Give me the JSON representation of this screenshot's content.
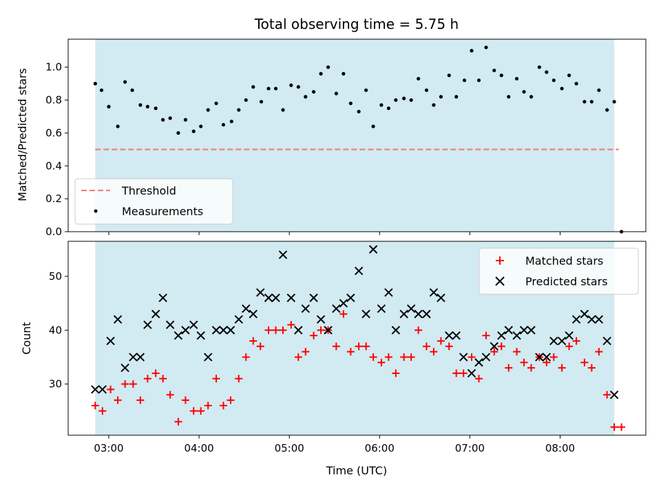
{
  "chart_data": {
    "type": "scatter",
    "title": "Total observing time = 5.75 h",
    "xlabel": "Time (UTC)",
    "x_unit": "hours UTC",
    "xlim": [
      2.55,
      8.95
    ],
    "xticks": [
      3,
      4,
      5,
      6,
      7,
      8
    ],
    "xtick_labels": [
      "03:00",
      "04:00",
      "05:00",
      "06:00",
      "07:00",
      "08:00"
    ],
    "observing_window": [
      2.85,
      8.6
    ],
    "observing_window_color": "#add8e6",
    "panels": [
      {
        "name": "ratio",
        "ylabel": "Matched/Predicted stars",
        "ylim": [
          0,
          1.17
        ],
        "yticks": [
          0.0,
          0.2,
          0.4,
          0.6,
          0.8,
          1.0
        ],
        "ytick_labels": [
          "0.0",
          "0.2",
          "0.4",
          "0.6",
          "0.8",
          "1.0"
        ],
        "legend_position": "lower-left",
        "threshold": {
          "name": "Threshold",
          "value": 0.5,
          "x_range": [
            2.85,
            8.65
          ],
          "color": "#f08080"
        },
        "series": [
          {
            "name": "Measurements",
            "marker": "dot",
            "color": "#000000",
            "points": [
              [
                2.85,
                0.9
              ],
              [
                2.92,
                0.86
              ],
              [
                3.0,
                0.76
              ],
              [
                3.1,
                0.64
              ],
              [
                3.18,
                0.91
              ],
              [
                3.26,
                0.86
              ],
              [
                3.35,
                0.77
              ],
              [
                3.43,
                0.76
              ],
              [
                3.52,
                0.75
              ],
              [
                3.6,
                0.68
              ],
              [
                3.68,
                0.69
              ],
              [
                3.77,
                0.6
              ],
              [
                3.85,
                0.68
              ],
              [
                3.94,
                0.61
              ],
              [
                4.02,
                0.64
              ],
              [
                4.1,
                0.74
              ],
              [
                4.19,
                0.78
              ],
              [
                4.27,
                0.65
              ],
              [
                4.36,
                0.67
              ],
              [
                4.44,
                0.74
              ],
              [
                4.52,
                0.8
              ],
              [
                4.6,
                0.88
              ],
              [
                4.69,
                0.79
              ],
              [
                4.77,
                0.87
              ],
              [
                4.85,
                0.87
              ],
              [
                4.93,
                0.74
              ],
              [
                5.02,
                0.89
              ],
              [
                5.1,
                0.88
              ],
              [
                5.18,
                0.82
              ],
              [
                5.27,
                0.85
              ],
              [
                5.35,
                0.96
              ],
              [
                5.43,
                1.0
              ],
              [
                5.52,
                0.84
              ],
              [
                5.6,
                0.96
              ],
              [
                5.68,
                0.78
              ],
              [
                5.77,
                0.73
              ],
              [
                5.85,
                0.86
              ],
              [
                5.93,
                0.64
              ],
              [
                6.02,
                0.77
              ],
              [
                6.1,
                0.75
              ],
              [
                6.18,
                0.8
              ],
              [
                6.27,
                0.81
              ],
              [
                6.35,
                0.8
              ],
              [
                6.43,
                0.93
              ],
              [
                6.52,
                0.86
              ],
              [
                6.6,
                0.77
              ],
              [
                6.68,
                0.82
              ],
              [
                6.77,
                0.95
              ],
              [
                6.85,
                0.82
              ],
              [
                6.94,
                0.92
              ],
              [
                7.02,
                1.1
              ],
              [
                7.1,
                0.92
              ],
              [
                7.18,
                1.12
              ],
              [
                7.27,
                0.98
              ],
              [
                7.35,
                0.95
              ],
              [
                7.43,
                0.82
              ],
              [
                7.52,
                0.93
              ],
              [
                7.6,
                0.85
              ],
              [
                7.68,
                0.82
              ],
              [
                7.77,
                1.0
              ],
              [
                7.85,
                0.97
              ],
              [
                7.93,
                0.92
              ],
              [
                8.02,
                0.87
              ],
              [
                8.1,
                0.95
              ],
              [
                8.18,
                0.9
              ],
              [
                8.27,
                0.79
              ],
              [
                8.35,
                0.79
              ],
              [
                8.43,
                0.86
              ],
              [
                8.52,
                0.74
              ],
              [
                8.6,
                0.79
              ],
              [
                8.68,
                0.0
              ]
            ]
          }
        ]
      },
      {
        "name": "count",
        "ylabel": "Count",
        "ylim": [
          20.5,
          56.5
        ],
        "yticks": [
          30,
          40,
          50
        ],
        "ytick_labels": [
          "30",
          "40",
          "50"
        ],
        "legend_position": "upper-right",
        "series": [
          {
            "name": "Matched stars",
            "marker": "plus",
            "color": "#ff0000",
            "points": [
              [
                2.85,
                26
              ],
              [
                2.93,
                25
              ],
              [
                3.02,
                29
              ],
              [
                3.1,
                27
              ],
              [
                3.18,
                30
              ],
              [
                3.27,
                30
              ],
              [
                3.35,
                27
              ],
              [
                3.43,
                31
              ],
              [
                3.52,
                32
              ],
              [
                3.6,
                31
              ],
              [
                3.68,
                28
              ],
              [
                3.77,
                23
              ],
              [
                3.85,
                27
              ],
              [
                3.94,
                25
              ],
              [
                4.02,
                25
              ],
              [
                4.1,
                26
              ],
              [
                4.19,
                31
              ],
              [
                4.27,
                26
              ],
              [
                4.35,
                27
              ],
              [
                4.44,
                31
              ],
              [
                4.52,
                35
              ],
              [
                4.6,
                38
              ],
              [
                4.68,
                37
              ],
              [
                4.77,
                40
              ],
              [
                4.85,
                40
              ],
              [
                4.93,
                40
              ],
              [
                5.02,
                41
              ],
              [
                5.1,
                35
              ],
              [
                5.18,
                36
              ],
              [
                5.27,
                39
              ],
              [
                5.35,
                40
              ],
              [
                5.43,
                40
              ],
              [
                5.52,
                37
              ],
              [
                5.6,
                43
              ],
              [
                5.68,
                36
              ],
              [
                5.77,
                37
              ],
              [
                5.85,
                37
              ],
              [
                5.93,
                35
              ],
              [
                6.02,
                34
              ],
              [
                6.1,
                35
              ],
              [
                6.18,
                32
              ],
              [
                6.27,
                35
              ],
              [
                6.35,
                35
              ],
              [
                6.43,
                40
              ],
              [
                6.52,
                37
              ],
              [
                6.6,
                36
              ],
              [
                6.68,
                38
              ],
              [
                6.77,
                37
              ],
              [
                6.85,
                32
              ],
              [
                6.93,
                32
              ],
              [
                7.02,
                35
              ],
              [
                7.1,
                31
              ],
              [
                7.18,
                39
              ],
              [
                7.27,
                36
              ],
              [
                7.35,
                37
              ],
              [
                7.43,
                33
              ],
              [
                7.52,
                36
              ],
              [
                7.6,
                34
              ],
              [
                7.68,
                33
              ],
              [
                7.77,
                35
              ],
              [
                7.85,
                34
              ],
              [
                7.93,
                35
              ],
              [
                8.02,
                33
              ],
              [
                8.1,
                37
              ],
              [
                8.18,
                38
              ],
              [
                8.27,
                34
              ],
              [
                8.35,
                33
              ],
              [
                8.43,
                36
              ],
              [
                8.52,
                28
              ],
              [
                8.6,
                22
              ],
              [
                8.68,
                22
              ]
            ]
          },
          {
            "name": "Predicted stars",
            "marker": "x",
            "color": "#000000",
            "points": [
              [
                2.85,
                29
              ],
              [
                2.93,
                29
              ],
              [
                3.02,
                38
              ],
              [
                3.1,
                42
              ],
              [
                3.18,
                33
              ],
              [
                3.27,
                35
              ],
              [
                3.35,
                35
              ],
              [
                3.43,
                41
              ],
              [
                3.52,
                43
              ],
              [
                3.6,
                46
              ],
              [
                3.68,
                41
              ],
              [
                3.77,
                39
              ],
              [
                3.85,
                40
              ],
              [
                3.94,
                41
              ],
              [
                4.02,
                39
              ],
              [
                4.1,
                35
              ],
              [
                4.19,
                40
              ],
              [
                4.27,
                40
              ],
              [
                4.35,
                40
              ],
              [
                4.44,
                42
              ],
              [
                4.52,
                44
              ],
              [
                4.6,
                43
              ],
              [
                4.68,
                47
              ],
              [
                4.77,
                46
              ],
              [
                4.85,
                46
              ],
              [
                4.93,
                54
              ],
              [
                5.02,
                46
              ],
              [
                5.1,
                40
              ],
              [
                5.18,
                44
              ],
              [
                5.27,
                46
              ],
              [
                5.35,
                42
              ],
              [
                5.43,
                40
              ],
              [
                5.52,
                44
              ],
              [
                5.6,
                45
              ],
              [
                5.68,
                46
              ],
              [
                5.77,
                51
              ],
              [
                5.85,
                43
              ],
              [
                5.93,
                55
              ],
              [
                6.02,
                44
              ],
              [
                6.1,
                47
              ],
              [
                6.18,
                40
              ],
              [
                6.27,
                43
              ],
              [
                6.35,
                44
              ],
              [
                6.43,
                43
              ],
              [
                6.52,
                43
              ],
              [
                6.6,
                47
              ],
              [
                6.68,
                46
              ],
              [
                6.77,
                39
              ],
              [
                6.85,
                39
              ],
              [
                6.93,
                35
              ],
              [
                7.02,
                32
              ],
              [
                7.1,
                34
              ],
              [
                7.18,
                35
              ],
              [
                7.27,
                37
              ],
              [
                7.35,
                39
              ],
              [
                7.43,
                40
              ],
              [
                7.52,
                39
              ],
              [
                7.6,
                40
              ],
              [
                7.68,
                40
              ],
              [
                7.77,
                35
              ],
              [
                7.85,
                35
              ],
              [
                7.93,
                38
              ],
              [
                8.02,
                38
              ],
              [
                8.1,
                39
              ],
              [
                8.18,
                42
              ],
              [
                8.27,
                43
              ],
              [
                8.35,
                42
              ],
              [
                8.43,
                42
              ],
              [
                8.52,
                38
              ],
              [
                8.6,
                28
              ]
            ]
          }
        ]
      }
    ]
  }
}
